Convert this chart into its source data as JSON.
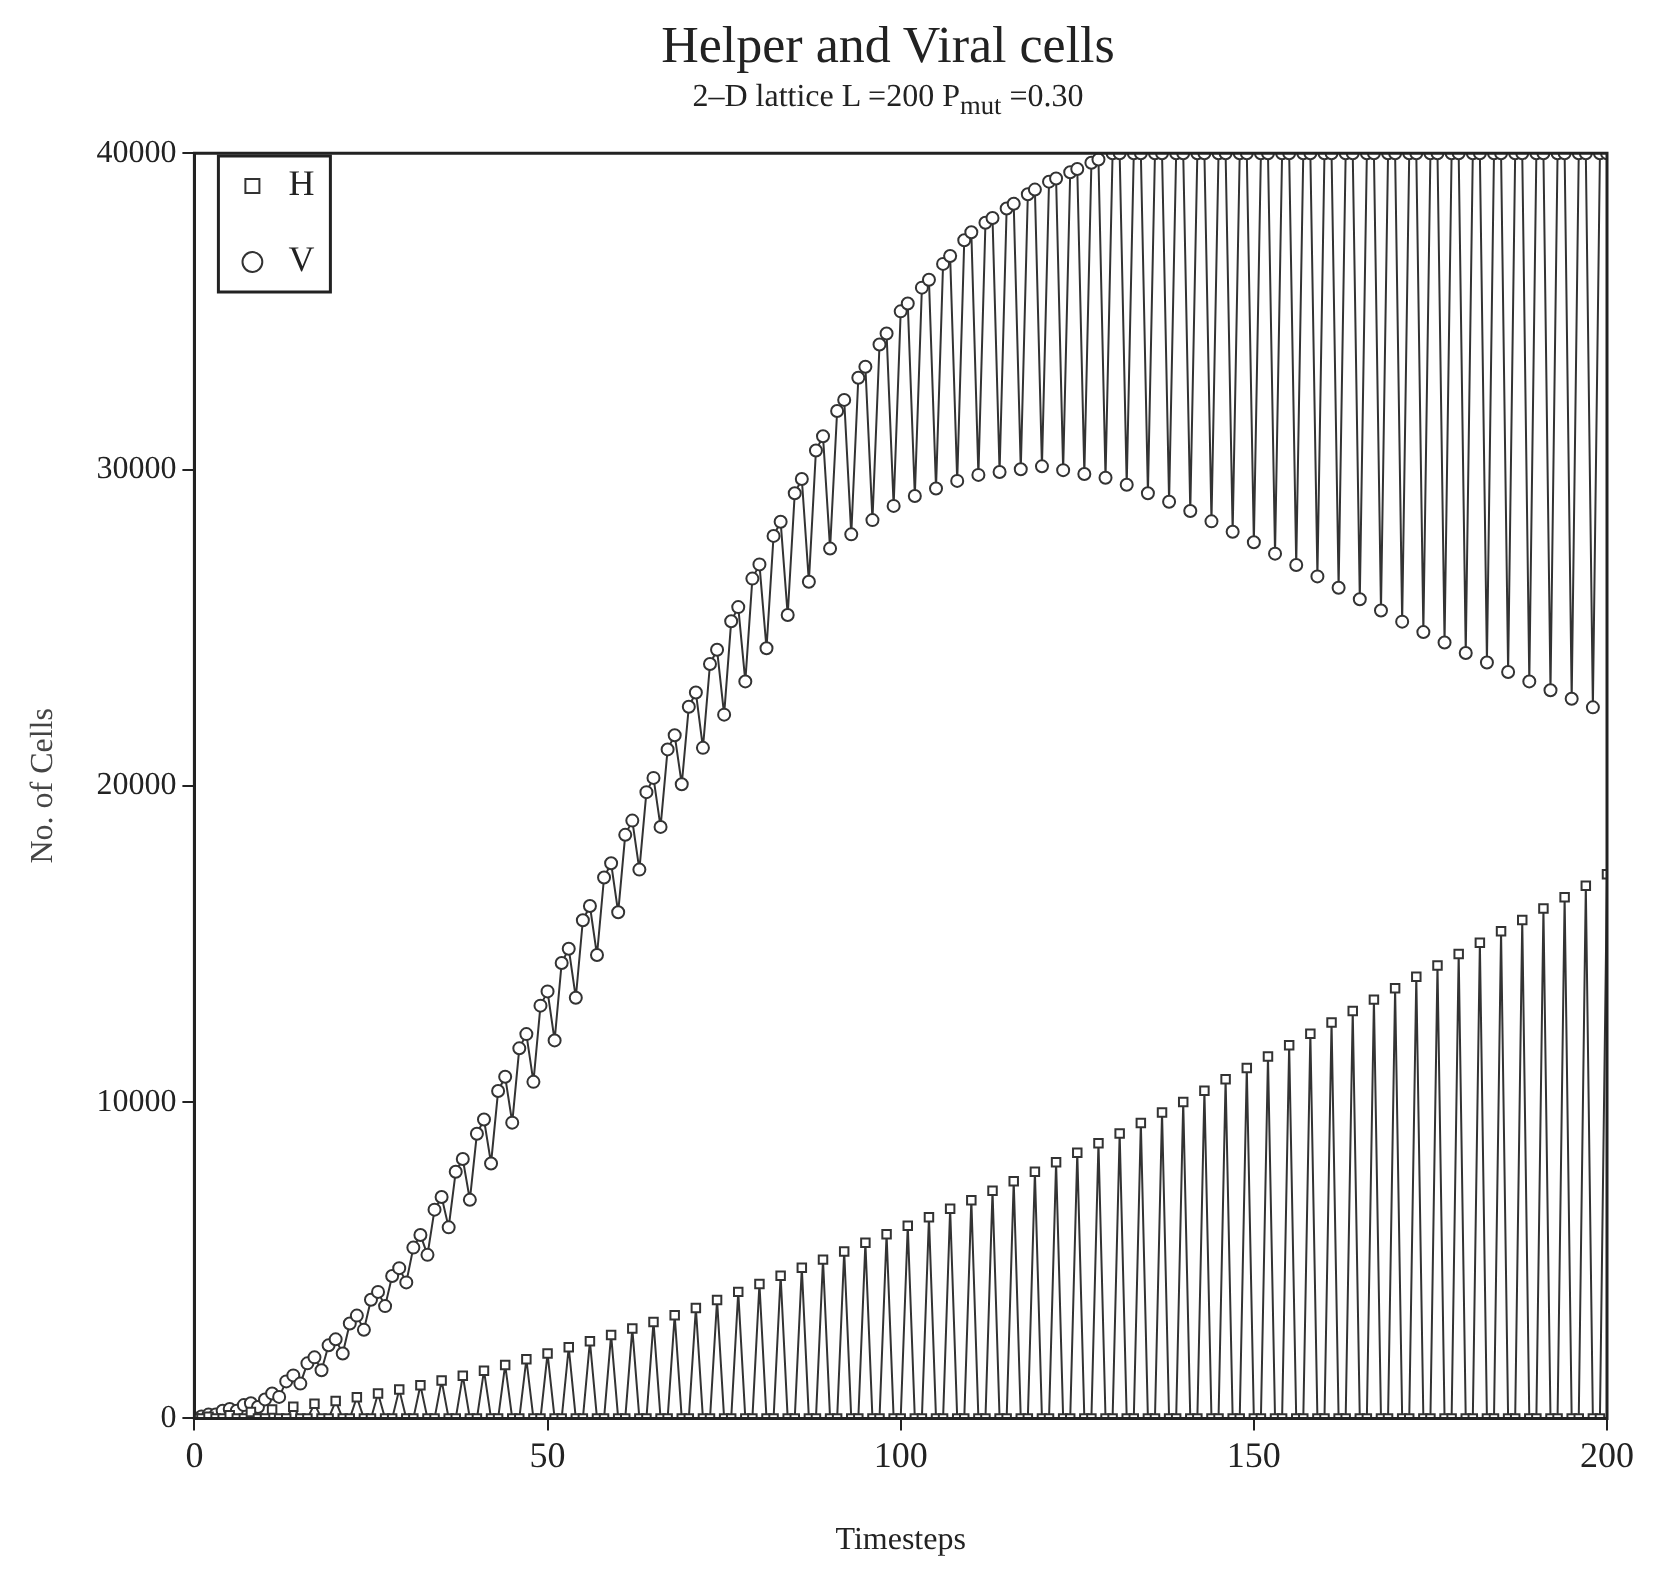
{
  "chart_data": {
    "type": "line",
    "title": "Helper and Viral cells",
    "subtitle": "2–D lattice L =200 P$_{mut}$ =0.30",
    "xlabel": "Timesteps",
    "ylabel": "No. of Cells",
    "x": [
      0,
      1,
      2,
      3,
      4,
      5,
      6,
      7,
      8,
      9,
      10,
      11,
      12,
      13,
      14,
      15,
      16,
      17,
      18,
      19,
      20,
      21,
      22,
      23,
      24,
      25,
      26,
      27,
      28,
      29,
      30,
      31,
      32,
      33,
      34,
      35,
      36,
      37,
      38,
      39,
      40,
      41,
      42,
      43,
      44,
      45,
      46,
      47,
      48,
      49,
      50,
      51,
      52,
      53,
      54,
      55,
      56,
      57,
      58,
      59,
      60,
      61,
      62,
      63,
      64,
      65,
      66,
      67,
      68,
      69,
      70,
      71,
      72,
      73,
      74,
      75,
      76,
      77,
      78,
      79,
      80,
      81,
      82,
      83,
      84,
      85,
      86,
      87,
      88,
      89,
      90,
      91,
      92,
      93,
      94,
      95,
      96,
      97,
      98,
      99,
      100,
      101,
      102,
      103,
      104,
      105,
      106,
      107,
      108,
      109,
      110,
      111,
      112,
      113,
      114,
      115,
      116,
      117,
      118,
      119,
      120,
      121,
      122,
      123,
      124,
      125,
      126,
      127,
      128,
      129,
      130,
      131,
      132,
      133,
      134,
      135,
      136,
      137,
      138,
      139,
      140,
      141,
      142,
      143,
      144,
      145,
      146,
      147,
      148,
      149,
      150,
      151,
      152,
      153,
      154,
      155,
      156,
      157,
      158,
      159,
      160,
      161,
      162,
      163,
      164,
      165,
      166,
      167,
      168,
      169,
      170,
      171,
      172,
      173,
      174,
      175,
      176,
      177,
      178,
      179,
      180,
      181,
      182,
      183,
      184,
      185,
      186,
      187,
      188,
      189,
      190,
      191,
      192,
      193,
      194,
      195,
      196,
      197,
      198,
      199,
      200
    ],
    "series": [
      {
        "name": "H",
        "color": "#333333",
        "marker": "square",
        "values": [
          0,
          0,
          50,
          0,
          0,
          100,
          0,
          0,
          200,
          0,
          0,
          280,
          0,
          0,
          370,
          0,
          0,
          460,
          0,
          0,
          550,
          0,
          0,
          670,
          0,
          0,
          790,
          0,
          0,
          910,
          0,
          0,
          1050,
          0,
          0,
          1200,
          0,
          0,
          1350,
          0,
          0,
          1510,
          0,
          0,
          1690,
          0,
          0,
          1870,
          0,
          0,
          2050,
          0,
          0,
          2250,
          0,
          0,
          2440,
          0,
          0,
          2640,
          0,
          0,
          2840,
          0,
          0,
          3050,
          0,
          0,
          3260,
          0,
          0,
          3490,
          0,
          0,
          3740,
          0,
          0,
          4000,
          0,
          0,
          4250,
          0,
          0,
          4510,
          0,
          0,
          4760,
          0,
          0,
          5020,
          0,
          0,
          5280,
          0,
          0,
          5550,
          0,
          0,
          5820,
          0,
          0,
          6090,
          0,
          0,
          6360,
          0,
          0,
          6630,
          0,
          0,
          6900,
          0,
          0,
          7200,
          0,
          0,
          7500,
          0,
          0,
          7800,
          0,
          0,
          8100,
          0,
          0,
          8400,
          0,
          0,
          8700,
          0,
          0,
          9010,
          0,
          0,
          9340,
          0,
          0,
          9670,
          0,
          0,
          10000,
          0,
          0,
          10360,
          0,
          0,
          10720,
          0,
          0,
          11080,
          0,
          0,
          11440,
          0,
          0,
          11800,
          0,
          0,
          12160,
          0,
          0,
          12520,
          0,
          0,
          12880,
          0,
          0,
          13240,
          0,
          0,
          13600,
          0,
          0,
          13960,
          0,
          0,
          14320,
          0,
          0,
          14680,
          0,
          0,
          15040,
          0,
          0,
          15400,
          0,
          0,
          15760,
          0,
          0,
          16120,
          0,
          0,
          16480,
          0,
          0,
          16840,
          0,
          0,
          17200
        ]
      },
      {
        "name": "V",
        "color": "#333333",
        "marker": "circle",
        "values": [
          0,
          60,
          120,
          120,
          240,
          300,
          240,
          420,
          480,
          360,
          600,
          790,
          680,
          1170,
          1360,
          1100,
          1740,
          1930,
          1520,
          2310,
          2500,
          2050,
          3000,
          3250,
          2800,
          3750,
          4000,
          3550,
          4500,
          4750,
          4300,
          5400,
          5800,
          5170,
          6600,
          7000,
          6040,
          7800,
          8200,
          6910,
          9000,
          9450,
          8060,
          10350,
          10800,
          9350,
          11700,
          12150,
          10640,
          13050,
          13500,
          11950,
          14400,
          14850,
          13300,
          15750,
          16200,
          14650,
          17100,
          17550,
          16000,
          18450,
          18900,
          17350,
          19800,
          20250,
          18700,
          21150,
          21600,
          20050,
          22500,
          22950,
          21200,
          23850,
          24300,
          22250,
          25200,
          25650,
          23300,
          26550,
          27000,
          24350,
          27900,
          28350,
          25400,
          29250,
          29700,
          26450,
          30600,
          31050,
          27500,
          31850,
          32200,
          27950,
          32900,
          33250,
          28400,
          33950,
          34300,
          28850,
          35000,
          35250,
          29160,
          35750,
          36000,
          29400,
          36500,
          36750,
          29640,
          37250,
          37500,
          29830,
          37800,
          37950,
          29920,
          38250,
          38400,
          30010,
          38700,
          38850,
          30100,
          39100,
          39200,
          29980,
          39400,
          39500,
          29860,
          39700,
          39800,
          29740,
          40000,
          40000,
          29520,
          40000,
          40000,
          29250,
          40000,
          40000,
          28980,
          40000,
          40000,
          28690,
          40000,
          40000,
          28360,
          40000,
          40000,
          28030,
          40000,
          40000,
          27700,
          40000,
          40000,
          27340,
          40000,
          40000,
          26980,
          40000,
          40000,
          26620,
          40000,
          40000,
          26260,
          40000,
          40000,
          25900,
          40000,
          40000,
          25540,
          40000,
          40000,
          25190,
          40000,
          40000,
          24860,
          40000,
          40000,
          24530,
          40000,
          40000,
          24200,
          40000,
          40000,
          23900,
          40000,
          40000,
          23600,
          40000,
          40000,
          23300,
          40000,
          40000,
          23020,
          40000,
          40000,
          22750,
          40000,
          40000,
          22480,
          40000,
          40000
        ]
      }
    ],
    "xlim": [
      0,
      200
    ],
    "xticks": [
      0,
      50,
      100,
      150,
      200
    ],
    "ylim": [
      0,
      40000
    ],
    "yticks": [
      0,
      10000,
      20000,
      30000,
      40000
    ],
    "grid": false,
    "legend": "top left",
    "line_style": "solid"
  }
}
